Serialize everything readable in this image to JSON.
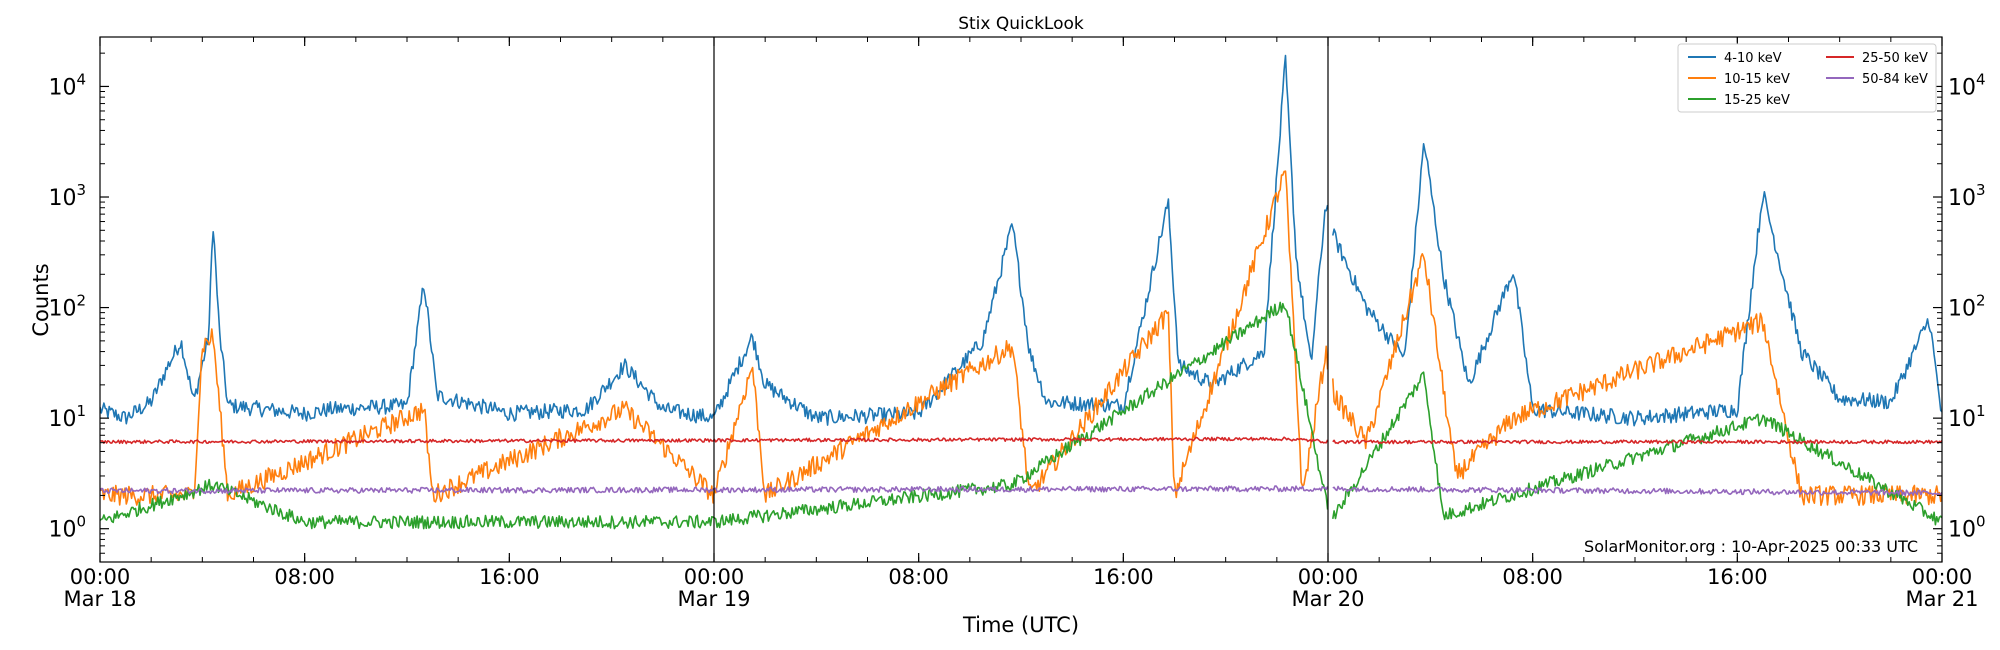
{
  "chart_data": {
    "type": "line",
    "title": "Stix QuickLook",
    "xlabel": "Time (UTC)",
    "ylabel": "Counts",
    "yscale": "log",
    "ylim": [
      0.5,
      28000
    ],
    "xlim": [
      "2025-03-18 00:00",
      "2025-03-21 00:00"
    ],
    "grid": false,
    "legend_position": "top-right",
    "x_ticks": [
      {
        "time": "2025-03-18 00:00",
        "line1": "00:00",
        "line2": "Mar 18"
      },
      {
        "time": "2025-03-18 08:00",
        "line1": "08:00",
        "line2": ""
      },
      {
        "time": "2025-03-18 16:00",
        "line1": "16:00",
        "line2": ""
      },
      {
        "time": "2025-03-19 00:00",
        "line1": "00:00",
        "line2": "Mar 19"
      },
      {
        "time": "2025-03-19 08:00",
        "line1": "08:00",
        "line2": ""
      },
      {
        "time": "2025-03-19 16:00",
        "line1": "16:00",
        "line2": ""
      },
      {
        "time": "2025-03-20 00:00",
        "line1": "00:00",
        "line2": "Mar 20"
      },
      {
        "time": "2025-03-20 08:00",
        "line1": "08:00",
        "line2": ""
      },
      {
        "time": "2025-03-20 16:00",
        "line1": "16:00",
        "line2": ""
      },
      {
        "time": "2025-03-21 00:00",
        "line1": "00:00",
        "line2": "Mar 21"
      }
    ],
    "y_ticks": [
      {
        "value": 1,
        "base": "10",
        "exp": "0"
      },
      {
        "value": 10,
        "base": "10",
        "exp": "1"
      },
      {
        "value": 100,
        "base": "10",
        "exp": "2"
      },
      {
        "value": 1000,
        "base": "10",
        "exp": "3"
      },
      {
        "value": 10000,
        "base": "10",
        "exp": "4"
      }
    ],
    "day_boundaries": [
      "2025-03-19 00:00",
      "2025-03-20 00:00"
    ],
    "data_gap": [
      "2025-03-20 00:00",
      "2025-03-20 00:10"
    ],
    "annotation": "SolarMonitor.org : 10-Apr-2025 00:33 UTC",
    "series": [
      {
        "name": "4-10 keV",
        "color": "#1f77b4",
        "values": [
          [
            "2025-03-18 00:00",
            12
          ],
          [
            "2025-03-18 01:00",
            10
          ],
          [
            "2025-03-18 02:00",
            14
          ],
          [
            "2025-03-18 02:40",
            30
          ],
          [
            "2025-03-18 03:10",
            50
          ],
          [
            "2025-03-18 03:40",
            14
          ],
          [
            "2025-03-18 04:15",
            55
          ],
          [
            "2025-03-18 04:25",
            600
          ],
          [
            "2025-03-18 04:40",
            60
          ],
          [
            "2025-03-18 05:00",
            13
          ],
          [
            "2025-03-18 08:00",
            11
          ],
          [
            "2025-03-18 09:00",
            12
          ],
          [
            "2025-03-18 12:00",
            13
          ],
          [
            "2025-03-18 12:40",
            170
          ],
          [
            "2025-03-18 13:10",
            16
          ],
          [
            "2025-03-18 16:00",
            11
          ],
          [
            "2025-03-18 19:00",
            12
          ],
          [
            "2025-03-18 20:30",
            30
          ],
          [
            "2025-03-18 22:00",
            12
          ],
          [
            "2025-03-19 00:00",
            10
          ],
          [
            "2025-03-19 01:30",
            55
          ],
          [
            "2025-03-19 02:00",
            20
          ],
          [
            "2025-03-19 04:00",
            10
          ],
          [
            "2025-03-19 08:00",
            11
          ],
          [
            "2025-03-19 10:30",
            50
          ],
          [
            "2025-03-19 11:40",
            560
          ],
          [
            "2025-03-19 12:20",
            40
          ],
          [
            "2025-03-19 13:00",
            14
          ],
          [
            "2025-03-19 16:00",
            13
          ],
          [
            "2025-03-19 17:45",
            900
          ],
          [
            "2025-03-19 18:10",
            30
          ],
          [
            "2025-03-19 19:30",
            20
          ],
          [
            "2025-03-19 21:30",
            40
          ],
          [
            "2025-03-19 22:20",
            17000
          ],
          [
            "2025-03-19 22:45",
            300
          ],
          [
            "2025-03-19 23:20",
            30
          ],
          [
            "2025-03-19 23:55",
            900
          ],
          [
            "2025-03-20 00:15",
            430
          ],
          [
            "2025-03-20 01:30",
            100
          ],
          [
            "2025-03-20 03:00",
            35
          ],
          [
            "2025-03-20 03:45",
            3200
          ],
          [
            "2025-03-20 04:30",
            200
          ],
          [
            "2025-03-20 05:30",
            20
          ],
          [
            "2025-03-20 07:15",
            220
          ],
          [
            "2025-03-20 08:00",
            12
          ],
          [
            "2025-03-20 12:00",
            10
          ],
          [
            "2025-03-20 16:00",
            12
          ],
          [
            "2025-03-20 17:00",
            1100
          ],
          [
            "2025-03-20 18:30",
            40
          ],
          [
            "2025-03-20 20:00",
            15
          ],
          [
            "2025-03-20 22:00",
            14
          ],
          [
            "2025-03-20 23:30",
            80
          ],
          [
            "2025-03-21 00:00",
            10
          ]
        ]
      },
      {
        "name": "10-15 keV",
        "color": "#ff7f0e",
        "values": [
          [
            "2025-03-18 00:00",
            2
          ],
          [
            "2025-03-18 03:40",
            2
          ],
          [
            "2025-03-18 04:00",
            45
          ],
          [
            "2025-03-18 04:25",
            55
          ],
          [
            "2025-03-18 05:00",
            2
          ],
          [
            "2025-03-18 12:40",
            12
          ],
          [
            "2025-03-18 13:00",
            2
          ],
          [
            "2025-03-18 20:30",
            12
          ],
          [
            "2025-03-19 00:00",
            2
          ],
          [
            "2025-03-19 01:30",
            30
          ],
          [
            "2025-03-19 02:00",
            2
          ],
          [
            "2025-03-19 11:40",
            45
          ],
          [
            "2025-03-19 12:20",
            2
          ],
          [
            "2025-03-19 17:45",
            90
          ],
          [
            "2025-03-19 18:00",
            2
          ],
          [
            "2025-03-19 22:20",
            1700
          ],
          [
            "2025-03-19 23:00",
            2
          ],
          [
            "2025-03-19 23:55",
            40
          ],
          [
            "2025-03-20 00:15",
            16
          ],
          [
            "2025-03-20 01:30",
            6
          ],
          [
            "2025-03-20 03:45",
            300
          ],
          [
            "2025-03-20 05:00",
            3
          ],
          [
            "2025-03-20 07:15",
            10
          ],
          [
            "2025-03-20 17:00",
            75
          ],
          [
            "2025-03-20 18:30",
            2
          ],
          [
            "2025-03-21 00:00",
            2
          ]
        ]
      },
      {
        "name": "15-25 keV",
        "color": "#2ca02c",
        "values": [
          [
            "2025-03-18 00:00",
            1.15
          ],
          [
            "2025-03-18 04:25",
            2.5
          ],
          [
            "2025-03-18 08:00",
            1.15
          ],
          [
            "2025-03-19 00:00",
            1.15
          ],
          [
            "2025-03-19 11:40",
            2.5
          ],
          [
            "2025-03-19 22:20",
            110
          ],
          [
            "2025-03-19 23:55",
            1.8
          ],
          [
            "2025-03-20 00:15",
            1.3
          ],
          [
            "2025-03-20 03:45",
            25
          ],
          [
            "2025-03-20 04:30",
            1.3
          ],
          [
            "2025-03-20 17:00",
            10
          ],
          [
            "2025-03-21 00:00",
            1.15
          ]
        ]
      },
      {
        "name": "25-50 keV",
        "color": "#d62728",
        "values": [
          [
            "2025-03-18 00:00",
            6.1
          ],
          [
            "2025-03-19 22:20",
            6.5
          ],
          [
            "2025-03-20 00:15",
            6.1
          ],
          [
            "2025-03-21 00:00",
            6.1
          ]
        ]
      },
      {
        "name": "50-84 keV",
        "color": "#9467bd",
        "values": [
          [
            "2025-03-18 00:00",
            2.2
          ],
          [
            "2025-03-20 00:15",
            2.3
          ],
          [
            "2025-03-21 00:00",
            2.1
          ]
        ]
      }
    ]
  }
}
